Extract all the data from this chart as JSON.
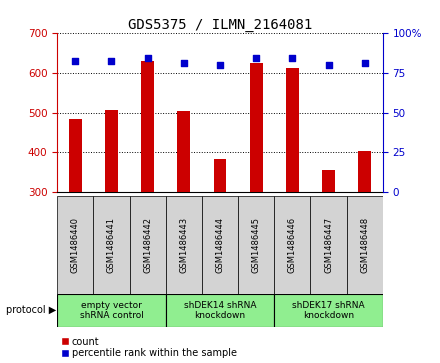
{
  "title": "GDS5375 / ILMN_2164081",
  "samples": [
    "GSM1486440",
    "GSM1486441",
    "GSM1486442",
    "GSM1486443",
    "GSM1486444",
    "GSM1486445",
    "GSM1486446",
    "GSM1486447",
    "GSM1486448"
  ],
  "counts": [
    483,
    507,
    628,
    503,
    383,
    625,
    612,
    357,
    403
  ],
  "percentiles": [
    82,
    82,
    84,
    81,
    80,
    84,
    84,
    80,
    81
  ],
  "ylim_left": [
    300,
    700
  ],
  "ylim_right": [
    0,
    100
  ],
  "yticks_left": [
    300,
    400,
    500,
    600,
    700
  ],
  "yticks_right": [
    0,
    25,
    50,
    75,
    100
  ],
  "bar_color": "#cc0000",
  "dot_color": "#0000cc",
  "grid_color": "#000000",
  "bg_color": "#ffffff",
  "protocol_spans": [
    {
      "start": 0,
      "end": 3,
      "label": "empty vector\nshRNA control"
    },
    {
      "start": 3,
      "end": 6,
      "label": "shDEK14 shRNA\nknockdown"
    },
    {
      "start": 6,
      "end": 9,
      "label": "shDEK17 shRNA\nknockdown"
    }
  ],
  "protocol_label": "protocol",
  "legend_count_label": "count",
  "legend_percentile_label": "percentile rank within the sample",
  "sample_box_color": "#d3d3d3",
  "protocol_box_color": "#90ee90",
  "title_fontsize": 10,
  "tick_fontsize": 7.5,
  "sample_fontsize": 6,
  "protocol_fontsize": 6.5,
  "legend_fontsize": 7,
  "bar_width": 0.35,
  "dot_size": 22
}
